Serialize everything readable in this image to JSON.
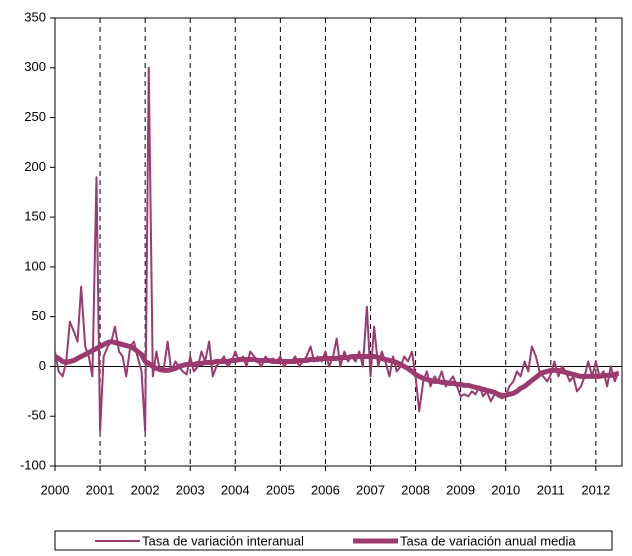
{
  "chart_data": {
    "type": "line",
    "x": [
      2000.0,
      2000.08,
      2000.17,
      2000.25,
      2000.33,
      2000.42,
      2000.5,
      2000.58,
      2000.67,
      2000.75,
      2000.83,
      2000.92,
      2001.0,
      2001.08,
      2001.17,
      2001.25,
      2001.33,
      2001.42,
      2001.5,
      2001.58,
      2001.67,
      2001.75,
      2001.83,
      2001.92,
      2002.0,
      2002.08,
      2002.17,
      2002.25,
      2002.33,
      2002.42,
      2002.5,
      2002.58,
      2002.67,
      2002.75,
      2002.83,
      2002.92,
      2003.0,
      2003.08,
      2003.17,
      2003.25,
      2003.33,
      2003.42,
      2003.5,
      2003.58,
      2003.67,
      2003.75,
      2003.83,
      2003.92,
      2004.0,
      2004.08,
      2004.17,
      2004.25,
      2004.33,
      2004.42,
      2004.5,
      2004.58,
      2004.67,
      2004.75,
      2004.83,
      2004.92,
      2005.0,
      2005.08,
      2005.17,
      2005.25,
      2005.33,
      2005.42,
      2005.5,
      2005.58,
      2005.67,
      2005.75,
      2005.83,
      2005.92,
      2006.0,
      2006.08,
      2006.17,
      2006.25,
      2006.33,
      2006.42,
      2006.5,
      2006.58,
      2006.67,
      2006.75,
      2006.83,
      2006.92,
      2007.0,
      2007.08,
      2007.17,
      2007.25,
      2007.33,
      2007.42,
      2007.5,
      2007.58,
      2007.67,
      2007.75,
      2007.83,
      2007.92,
      2008.0,
      2008.08,
      2008.17,
      2008.25,
      2008.33,
      2008.42,
      2008.5,
      2008.58,
      2008.67,
      2008.75,
      2008.83,
      2008.92,
      2009.0,
      2009.08,
      2009.17,
      2009.25,
      2009.33,
      2009.42,
      2009.5,
      2009.58,
      2009.67,
      2009.75,
      2009.83,
      2009.92,
      2010.0,
      2010.08,
      2010.17,
      2010.25,
      2010.33,
      2010.42,
      2010.5,
      2010.58,
      2010.67,
      2010.75,
      2010.83,
      2010.92,
      2011.0,
      2011.08,
      2011.17,
      2011.25,
      2011.33,
      2011.42,
      2011.5,
      2011.58,
      2011.67,
      2011.75,
      2011.83,
      2011.92,
      2012.0,
      2012.08,
      2012.17,
      2012.25,
      2012.33,
      2012.42,
      2012.5
    ],
    "series": [
      {
        "name": "Tasa de variación interanual",
        "color": "#9b3a6e",
        "width": 2,
        "values": [
          15,
          -5,
          -10,
          5,
          45,
          35,
          25,
          80,
          20,
          10,
          -10,
          190,
          -65,
          10,
          20,
          25,
          40,
          15,
          10,
          -10,
          20,
          25,
          10,
          -5,
          -65,
          300,
          -10,
          15,
          -5,
          0,
          25,
          -5,
          5,
          0,
          -5,
          -8,
          10,
          -5,
          0,
          15,
          5,
          25,
          -10,
          0,
          5,
          10,
          0,
          5,
          15,
          5,
          10,
          0,
          15,
          10,
          5,
          0,
          10,
          5,
          8,
          5,
          10,
          0,
          5,
          5,
          10,
          0,
          5,
          10,
          20,
          5,
          10,
          5,
          15,
          0,
          10,
          28,
          0,
          15,
          5,
          10,
          5,
          15,
          0,
          60,
          -10,
          40,
          0,
          15,
          5,
          -10,
          10,
          -5,
          0,
          10,
          5,
          15,
          -10,
          -45,
          -15,
          -5,
          -20,
          -10,
          -15,
          -5,
          -20,
          -15,
          -10,
          -20,
          -30,
          -28,
          -30,
          -25,
          -28,
          -20,
          -30,
          -25,
          -35,
          -28,
          -30,
          -32,
          -30,
          -20,
          -15,
          -5,
          -10,
          5,
          -5,
          20,
          10,
          -5,
          -10,
          -15,
          -8,
          5,
          -10,
          0,
          -5,
          -15,
          -10,
          -25,
          -20,
          -10,
          5,
          -10,
          5,
          -10,
          -5,
          -20,
          0,
          -15,
          -5
        ]
      },
      {
        "name": "Tasa de variación anual media",
        "color": "#9b3a6e",
        "width": 5,
        "values": [
          10,
          8,
          5,
          4,
          5,
          6,
          8,
          10,
          12,
          14,
          16,
          18,
          20,
          22,
          24,
          25,
          24,
          23,
          22,
          21,
          20,
          18,
          15,
          12,
          5,
          3,
          0,
          -2,
          -3,
          -4,
          -4,
          -3,
          -2,
          0,
          1,
          2,
          2,
          2,
          3,
          3,
          4,
          4,
          4,
          5,
          5,
          5,
          5,
          6,
          6,
          7,
          7,
          7,
          7,
          7,
          6,
          6,
          6,
          6,
          5,
          5,
          5,
          5,
          5,
          5,
          5,
          6,
          6,
          6,
          7,
          7,
          7,
          8,
          8,
          8,
          8,
          8,
          9,
          9,
          9,
          10,
          10,
          10,
          10,
          10,
          10,
          10,
          9,
          8,
          7,
          6,
          5,
          4,
          2,
          0,
          -2,
          -5,
          -8,
          -10,
          -12,
          -13,
          -14,
          -15,
          -15,
          -16,
          -16,
          -17,
          -17,
          -18,
          -18,
          -19,
          -19,
          -20,
          -21,
          -22,
          -23,
          -24,
          -25,
          -26,
          -28,
          -29,
          -29,
          -28,
          -27,
          -25,
          -22,
          -20,
          -17,
          -14,
          -11,
          -8,
          -6,
          -5,
          -4,
          -4,
          -4,
          -5,
          -6,
          -7,
          -8,
          -9,
          -10,
          -10,
          -10,
          -10,
          -10,
          -10,
          -9,
          -9,
          -9,
          -8,
          -7
        ]
      }
    ],
    "xlim": [
      2000,
      2012.58
    ],
    "xticks": [
      2000,
      2001,
      2002,
      2003,
      2004,
      2005,
      2006,
      2007,
      2008,
      2009,
      2010,
      2011,
      2012
    ],
    "ylim": [
      -100,
      350
    ],
    "yticks": [
      -100,
      -50,
      0,
      50,
      100,
      150,
      200,
      250,
      300,
      350
    ],
    "grid": "x-dashed",
    "legend": "bottom"
  }
}
